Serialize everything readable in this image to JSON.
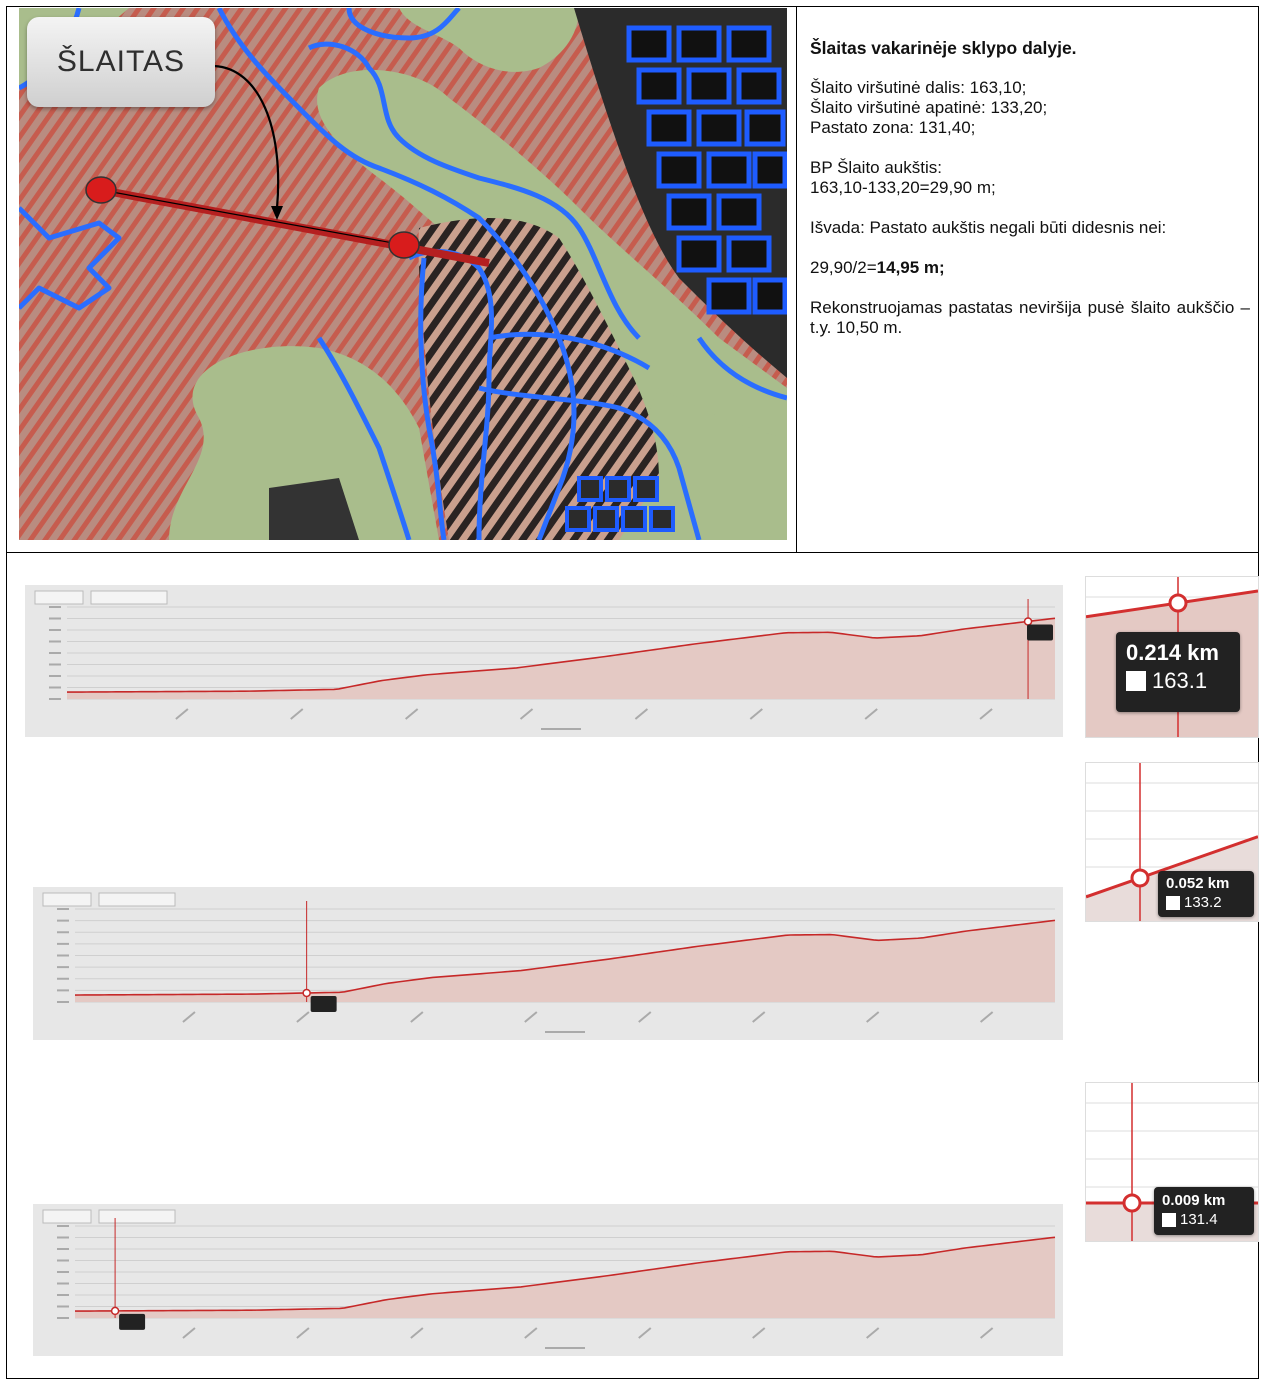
{
  "map": {
    "callout_label": "ŠLAITAS"
  },
  "description": {
    "heading": "Šlaitas vakarinėje sklypo dalyje.",
    "line1": "Šlaito viršutinė dalis: 163,10;",
    "line2": "Šlaito viršutinė apatinė: 133,20;",
    "line3": "Pastato zona: 131,40;",
    "height_label": "BP Šlaito aukštis:",
    "height_calc": "163,10-133,20=29,90 m;",
    "conclusion": "Išvada: Pastato aukštis negali būti didesnis nei:",
    "result_prefix": "29,90/2=",
    "result_value": "14,95 m;",
    "final": "Rekonstruojamas pastatas neviršija pusė šlaito aukščio – t.y. 10,50 m."
  },
  "profiles": [
    {
      "marker_km": "0.214 km",
      "marker_value": "163.1",
      "marker_x_km": 0.214
    },
    {
      "marker_km": "0.052 km",
      "marker_value": "133.2",
      "marker_x_km": 0.052
    },
    {
      "marker_km": "0.009 km",
      "marker_value": "131.4",
      "marker_x_km": 0.009
    }
  ],
  "chart_data": {
    "type": "area",
    "color": "#c62828",
    "x": [
      0,
      0.02,
      0.04,
      0.06,
      0.07,
      0.08,
      0.09,
      0.1,
      0.12,
      0.14,
      0.16,
      0.17,
      0.18,
      0.19,
      0.2,
      0.22
    ],
    "y": [
      131.0,
      131.2,
      131.4,
      132.2,
      136.0,
      138.5,
      140.0,
      141.5,
      146.5,
      152.0,
      156.8,
      157.0,
      154.5,
      155.5,
      158.5,
      163.1
    ],
    "xlim": [
      0,
      0.22
    ],
    "ylim": [
      128,
      168
    ]
  }
}
